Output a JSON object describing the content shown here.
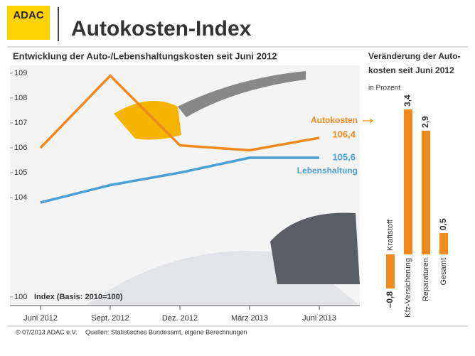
{
  "header": {
    "logo": "ADAC",
    "title": "Autokosten-Index"
  },
  "footer": {
    "copyright": "© 07/2013 ADAC e.V.",
    "source": "Quellen: Statistisches Bundesamt, eigene Berechnungen"
  },
  "chart_data": [
    {
      "type": "line",
      "title": "Entwicklung der Auto-/Lebenshaltungskosten seit Juni 2012",
      "annotation": "Index (Basis: 2010=100)",
      "categories": [
        "Juni 2012",
        "Sept. 2012",
        "Dez. 2012",
        "März 2013",
        "Juni 2013"
      ],
      "series": [
        {
          "name": "Autokosten",
          "color": "#f08a1c",
          "values": [
            106.0,
            108.9,
            106.1,
            105.9,
            106.4
          ],
          "value_labels": [
            null,
            null,
            null,
            null,
            "106,4"
          ]
        },
        {
          "name": "Lebenshaltung",
          "color": "#4a9fd5",
          "values": [
            103.8,
            104.5,
            105.0,
            105.6,
            105.6
          ],
          "value_labels": [
            null,
            null,
            null,
            null,
            "105,6"
          ]
        }
      ],
      "ylim": [
        100,
        109
      ],
      "yticks": [
        100,
        104,
        105,
        106,
        107,
        108,
        109
      ],
      "grid": false
    },
    {
      "type": "bar",
      "title": "Veränderung der Autokosten seit Juni 2012",
      "subtitle": "in Prozent",
      "categories": [
        "Kraftstoff",
        "Kfz-Versicherung",
        "Reparaturen",
        "Gesamt"
      ],
      "values": [
        -0.8,
        3.4,
        2.9,
        0.5
      ],
      "value_labels": [
        "–0,8",
        "3,4",
        "2,9",
        "0,5"
      ],
      "color": "#f08a1c",
      "ylim": [
        -1,
        3.5
      ]
    }
  ]
}
